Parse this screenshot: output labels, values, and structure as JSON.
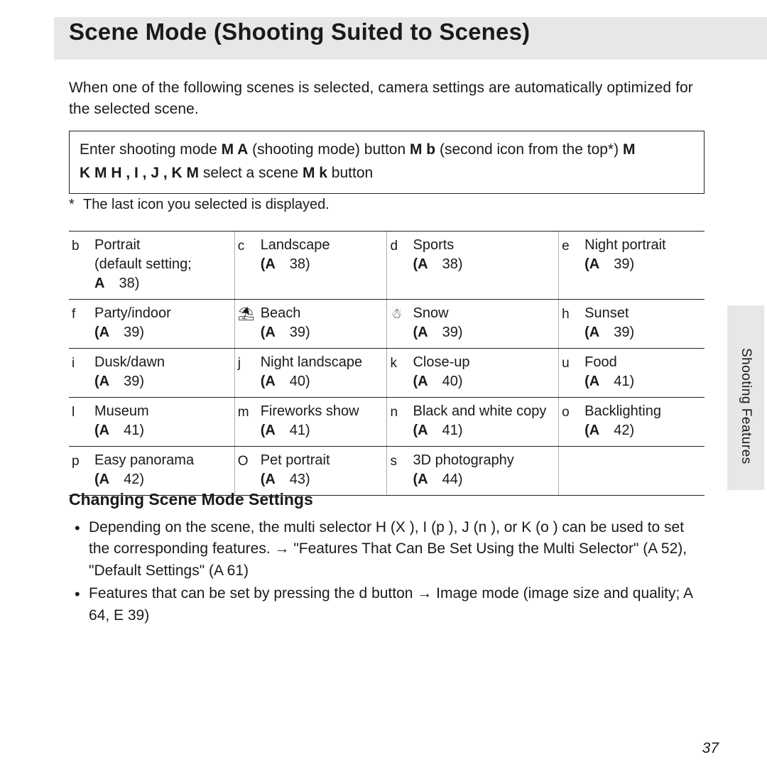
{
  "header": {
    "title": "Scene Mode (Shooting Suited to Scenes)",
    "section_label": "Shooting Features"
  },
  "intro": "When one of the following scenes is selected, camera settings are automatically optimized for the selected scene.",
  "navbox": {
    "line1_a": "Enter shooting mode ",
    "line1_b": "M A",
    "line1_c": "   (shooting mode) button ",
    "line1_d": "M b",
    "line1_e": "   (second icon from the top*) ",
    "line1_f": "M",
    "line2_a": "K M H , I    , J  , K M",
    "line2_b": "  select a scene ",
    "line2_c": "M k",
    "line2_d": "   button"
  },
  "footnote": "The last icon you selected is displayed.",
  "scene_table": {
    "columns": 4,
    "rows": [
      [
        {
          "tag": "b",
          "name": "Portrait",
          "sub": "(default setting;",
          "ref_a": "A",
          "ref_p": "38)"
        },
        {
          "tag": "c",
          "name": "Landscape",
          "ref_a": "(A",
          "ref_p": "38)"
        },
        {
          "tag": "d",
          "name": "Sports",
          "ref_a": "(A",
          "ref_p": "38)"
        },
        {
          "tag": "e",
          "name": "Night portrait",
          "ref_a": "(A",
          "ref_p": "39)"
        }
      ],
      [
        {
          "tag": "f",
          "name": "Party/indoor",
          "ref_a": "(A",
          "ref_p": "39)"
        },
        {
          "tag": "⛱",
          "name": "Beach",
          "ref_a": "(A",
          "ref_p": "39)"
        },
        {
          "tag": "☃",
          "name": "Snow",
          "ref_a": "(A",
          "ref_p": "39)"
        },
        {
          "tag": "h",
          "name": "Sunset",
          "ref_a": "(A",
          "ref_p": "39)"
        }
      ],
      [
        {
          "tag": "i",
          "name": "Dusk/dawn",
          "ref_a": "(A",
          "ref_p": "39)"
        },
        {
          "tag": "j",
          "name": "Night landscape",
          "ref_a": "(A",
          "ref_p": "40)"
        },
        {
          "tag": "k",
          "name": "Close-up",
          "ref_a": "(A",
          "ref_p": "40)"
        },
        {
          "tag": "u",
          "name": "Food",
          "ref_a": "(A",
          "ref_p": "41)"
        }
      ],
      [
        {
          "tag": "l",
          "name": "Museum",
          "ref_a": "(A",
          "ref_p": "41)"
        },
        {
          "tag": "m",
          "name": "Fireworks show",
          "ref_a": "(A",
          "ref_p": "41)"
        },
        {
          "tag": "n",
          "name": "Black and white copy",
          "ref_a": "(A",
          "ref_p": "41)"
        },
        {
          "tag": "o",
          "name": "Backlighting",
          "ref_a": "(A",
          "ref_p": "42)"
        }
      ],
      [
        {
          "tag": "p",
          "name": "Easy panorama",
          "ref_a": "(A",
          "ref_p": "42)"
        },
        {
          "tag": "O",
          "name": "Pet portrait",
          "ref_a": "(A",
          "ref_p": "43)"
        },
        {
          "tag": "s",
          "name": "3D photography",
          "ref_a": "(A",
          "ref_p": "44)"
        },
        null
      ]
    ]
  },
  "sub_heading": "Changing Scene Mode Settings",
  "bullets": [
    "Depending on the scene, the multi selector H   (X ),  I    (p   ),  J   (n   ), or K   (o   ) can be used to set the corresponding features. → \"Features That Can Be Set Using the Multi Selector\" (A     52), \"Default Settings\" (A     61)",
    "Features that can be set by pressing the d        button → Image mode (image size and quality;  A     64,  E     39)"
  ],
  "page_number": "37",
  "colors": {
    "band": "#e7e7e7",
    "text": "#1a1a1a",
    "rule": "#222222",
    "divider": "#adadad"
  },
  "typography": {
    "title_size_pt": 25,
    "body_size_pt": 16,
    "subheading_size_pt": 17
  }
}
